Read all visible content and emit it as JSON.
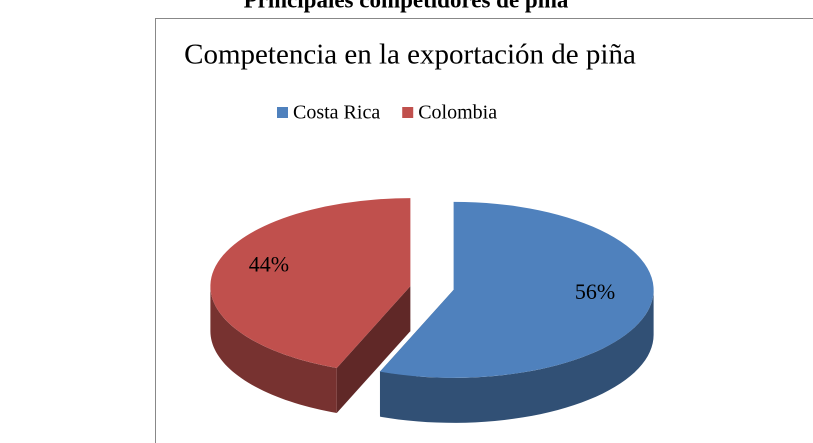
{
  "heading": "Principales competidores de piña",
  "chart_data": {
    "type": "pie",
    "title": "Competencia en la exportación de piña",
    "categories": [
      "Costa Rica",
      "Colombia"
    ],
    "values": [
      56,
      44
    ],
    "value_labels": [
      "56%",
      "44%"
    ],
    "colors": [
      "#4f81bd",
      "#c0504d"
    ],
    "legend": "top"
  }
}
